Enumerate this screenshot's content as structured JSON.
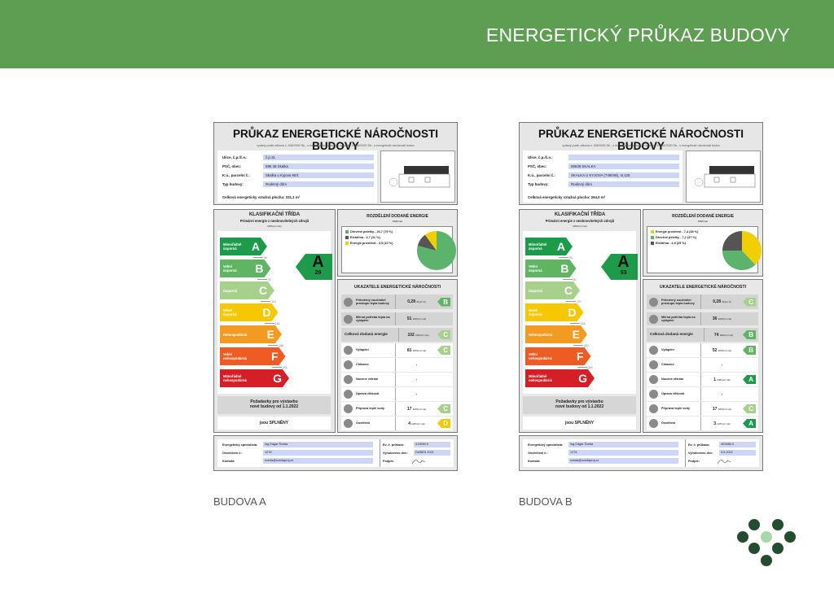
{
  "header": {
    "title": "ENERGETICKÝ PRŮKAZ BUDOVY",
    "color": "#5e9e52"
  },
  "class_colors": {
    "A": "#1e9a4b",
    "B": "#5fb562",
    "C": "#a8d08d",
    "D": "#f5c800",
    "E": "#f39a21",
    "F": "#ef5c23",
    "G": "#d41f27"
  },
  "class_names": [
    "Mimořádně úsporná",
    "Velmi úsporná",
    "Úsporná",
    "Méně úsporná",
    "Nehospodárná",
    "Velmi nehospodárná",
    "Mimořádně nehospodárná"
  ],
  "class_letters": [
    "A",
    "B",
    "C",
    "D",
    "E",
    "F",
    "G"
  ],
  "labels": {
    "title": "PRŮKAZ ENERGETICKÉ NÁROČNOSTI BUDOVY",
    "subtitle": "vydaný podle zákona č. 406/2000 Sb., o hospodaření energií, a vyhlášky č. 264/2020 Sb., o energetické náročnosti budov",
    "street": "Ulice, č.p./č.o.:",
    "psc": "PSČ, obec:",
    "ku": "K.ú., parcelní č.:",
    "type": "Typ budovy:",
    "area": "Celková energeticky vztažná plocha:",
    "klas_title": "KLASIFIKAČNÍ TŘÍDA",
    "klas_sub": "Primární energie z neobnovitelných zdrojů",
    "klas_unit": "kWh/(m² rok)",
    "req1": "Požadavky pro výstavbu",
    "req2": "nové budovy od 1.1.2022",
    "ok": "jsou SPLNĚNY",
    "roz_title": "ROZDĚLENÍ DODANÉ ENERGIE",
    "roz_unit": "MWh/rok",
    "uk_title": "UKAZATELE ENERGETICKÉ NÁROČNOSTI",
    "specialist": "Energetický specialista:",
    "cert_no": "Osvědčení č.:",
    "contact": "Kontakt:",
    "ev": "Ev. č. průkazu:",
    "made": "Vyhotoveno dne:",
    "sign": "Podpis:"
  },
  "certificates": [
    {
      "caption": "BUDOVA A",
      "street": "č.p.31",
      "psc": "696 48 Skalka",
      "ku": "Skalka u Kyjova 90/1",
      "type": "Rodinný dům",
      "area": "331,1 m²",
      "class": "A",
      "value": "29",
      "thresholds": [
        "50",
        "75",
        "115",
        "145",
        "188",
        "233"
      ],
      "pie": [
        {
          "label": "Dřevěné peletky - 26,7 (79 %)",
          "value": 79,
          "color": "#5cb46c"
        },
        {
          "label": "Elektřina - 3,7 (11 %)",
          "value": 11,
          "color": "#555555"
        },
        {
          "label": "Energie prostředí - 3,5 (10 %)",
          "value": 10,
          "color": "#f2cf00"
        }
      ],
      "indicators": [
        {
          "name": "Průměrný součinitel prostupu tepla budovy",
          "value": "0,28",
          "unit": "W/(m²·K)",
          "class": "B",
          "icon": "house-icon"
        },
        {
          "name": "Měrná potřeba tepla na vytápění",
          "value": "51",
          "unit": "kWh/(m²·rok)",
          "class": "",
          "icon": "radiator-icon"
        },
        {
          "name": "Celková dodaná energie",
          "value": "102",
          "unit": "kWh/(m²·rok)",
          "class": "C",
          "icon": ""
        },
        {
          "name": "Vytápění",
          "value": "81",
          "unit": "kWh/(m²·rok)",
          "class": "C",
          "icon": "heating-icon"
        },
        {
          "name": "Chlazení",
          "value": "-",
          "unit": "",
          "class": "",
          "icon": "thermometer-icon"
        },
        {
          "name": "Nucené větrání",
          "value": "-",
          "unit": "",
          "class": "",
          "icon": "fan-icon"
        },
        {
          "name": "Úprava vlhkosti",
          "value": "-",
          "unit": "",
          "class": "",
          "icon": "humidity-icon"
        },
        {
          "name": "Příprava teplé vody",
          "value": "17",
          "unit": "kWh/(m²·rok)",
          "class": "C",
          "icon": "faucet-icon"
        },
        {
          "name": "Osvětlení",
          "value": "4",
          "unit": "kWh/(m²·rok)",
          "class": "D",
          "icon": "lightbulb-icon"
        }
      ],
      "specialist": "Ing.Edgar Švéda",
      "cert_no": "1276",
      "contact": "sveda@svedaproj.cz",
      "ev": "413590.0",
      "made": "DUBEN 2021"
    },
    {
      "caption": "BUDOVA B",
      "street": "",
      "psc": "69648 SKALKA",
      "ku": "SKALKA U KYJOVA (748048), st.125",
      "type": "Rodinný dům",
      "area": "264,0 m²",
      "class": "A",
      "value": "53",
      "thresholds": [
        "54",
        "80",
        "107",
        "154",
        "202",
        "248"
      ],
      "pie": [
        {
          "label": "Energie prostředí - 7,4 (38 %)",
          "value": 38,
          "color": "#f2cf00"
        },
        {
          "label": "Dřevěné peletky - 7,2 (37 %)",
          "value": 37,
          "color": "#5cb46c"
        },
        {
          "label": "Elektřina - 4,9 (25 %)",
          "value": 25,
          "color": "#555555"
        }
      ],
      "indicators": [
        {
          "name": "Průměrný součinitel prostupu tepla budovy",
          "value": "0,28",
          "unit": "W/(m²·K)",
          "class": "C",
          "icon": "house-icon"
        },
        {
          "name": "Měrná potřeba tepla na vytápění",
          "value": "36",
          "unit": "kWh/(m²·rok)",
          "class": "",
          "icon": "radiator-icon"
        },
        {
          "name": "Celková dodaná energie",
          "value": "74",
          "unit": "kWh/(m²·rok)",
          "class": "B",
          "icon": ""
        },
        {
          "name": "Vytápění",
          "value": "52",
          "unit": "kWh/(m²·rok)",
          "class": "B",
          "icon": "heating-icon"
        },
        {
          "name": "Chlazení",
          "value": "-",
          "unit": "",
          "class": "",
          "icon": "thermometer-icon"
        },
        {
          "name": "Nucené větrání",
          "value": "1",
          "unit": "kWh/(m²·rok)",
          "class": "A",
          "icon": "fan-icon"
        },
        {
          "name": "Úprava vlhkosti",
          "value": "-",
          "unit": "",
          "class": "",
          "icon": "humidity-icon"
        },
        {
          "name": "Příprava teplé vody",
          "value": "17",
          "unit": "kWh/(m²·rok)",
          "class": "C",
          "icon": "faucet-icon"
        },
        {
          "name": "Osvětlení",
          "value": "3",
          "unit": "kWh/(m²·rok)",
          "class": "A",
          "icon": "lightbulb-icon"
        }
      ],
      "specialist": "Ing.Edgar Švéda",
      "cert_no": "1276",
      "contact": "sveda@svedaproj.cz",
      "ev": "429486.0",
      "made": "3.5.2022"
    }
  ]
}
